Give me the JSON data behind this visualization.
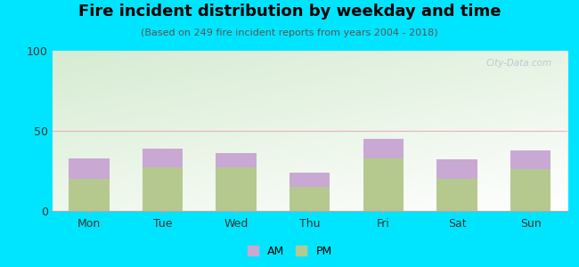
{
  "days": [
    "Mon",
    "Tue",
    "Wed",
    "Thu",
    "Fri",
    "Sat",
    "Sun"
  ],
  "pm_values": [
    20,
    27,
    27,
    15,
    33,
    20,
    26
  ],
  "am_values": [
    13,
    12,
    9,
    9,
    12,
    12,
    12
  ],
  "am_color": "#c9a8d4",
  "pm_color": "#b5c98e",
  "title": "Fire incident distribution by weekday and time",
  "subtitle": "(Based on 249 fire incident reports from years 2004 - 2018)",
  "ylim": [
    0,
    100
  ],
  "yticks": [
    0,
    50,
    100
  ],
  "background_outer": "#00e5ff",
  "grad_top_left": "#d6ecd2",
  "grad_bottom_right": "#ffffff",
  "bar_width": 0.55,
  "watermark": "City-Data.com",
  "legend_labels": [
    "AM",
    "PM"
  ],
  "hline_color": "#e8a0b0",
  "hline_y": 50,
  "title_fontsize": 13,
  "subtitle_fontsize": 8
}
